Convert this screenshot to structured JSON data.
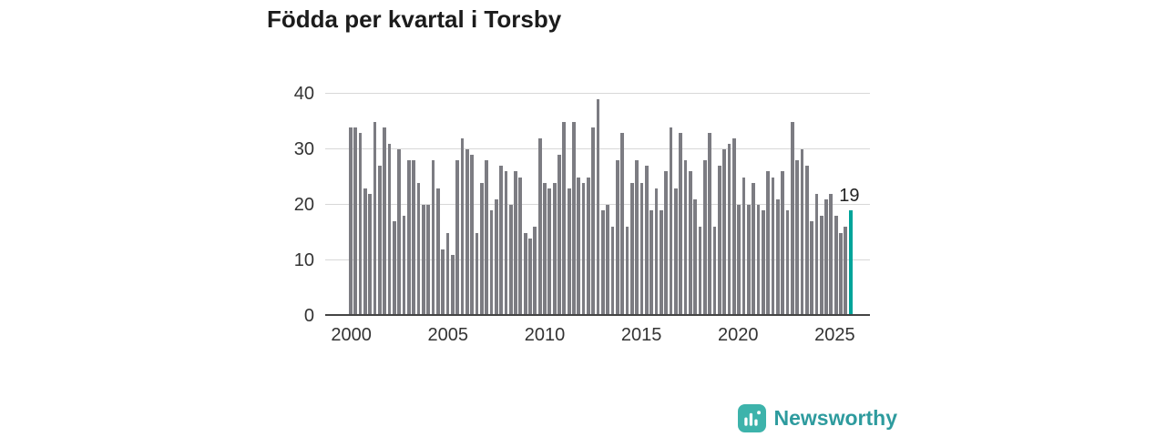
{
  "title": "Födda per kvartal i Torsby",
  "branding": {
    "name": "Newsworthy"
  },
  "colors": {
    "bar": "#7c7c82",
    "accent": "#00a49a",
    "brand_icon": "#3db3ab",
    "brand_text": "#2e9b9e",
    "grid": "#d8d8d8",
    "axis": "#444444"
  },
  "chart_data": {
    "type": "bar",
    "title": "Födda per kvartal i Torsby",
    "xlabel": "",
    "ylabel": "",
    "x_unit": "quarter",
    "x_start": "2000-Q1",
    "x_end": "2025-Q4",
    "xticks": [
      2000,
      2005,
      2010,
      2015,
      2020,
      2025
    ],
    "yticks": [
      0,
      10,
      20,
      30,
      40
    ],
    "ylim": [
      0,
      40
    ],
    "grid": "horizontal",
    "legend": "none",
    "highlight_last": true,
    "last_value_label": "19",
    "values": [
      34,
      34,
      33,
      23,
      22,
      35,
      27,
      34,
      31,
      17,
      30,
      18,
      28,
      28,
      24,
      20,
      20,
      28,
      23,
      12,
      15,
      11,
      28,
      32,
      30,
      29,
      15,
      24,
      28,
      19,
      21,
      27,
      26,
      20,
      26,
      25,
      15,
      14,
      16,
      32,
      24,
      23,
      24,
      29,
      35,
      23,
      35,
      25,
      24,
      25,
      34,
      39,
      19,
      20,
      16,
      28,
      33,
      16,
      24,
      28,
      24,
      27,
      19,
      23,
      19,
      26,
      34,
      23,
      33,
      28,
      26,
      21,
      16,
      28,
      33,
      16,
      27,
      30,
      31,
      32,
      20,
      25,
      20,
      24,
      20,
      19,
      26,
      25,
      21,
      26,
      19,
      35,
      28,
      30,
      27,
      17,
      22,
      18,
      21,
      22,
      18,
      15,
      16,
      19
    ]
  }
}
